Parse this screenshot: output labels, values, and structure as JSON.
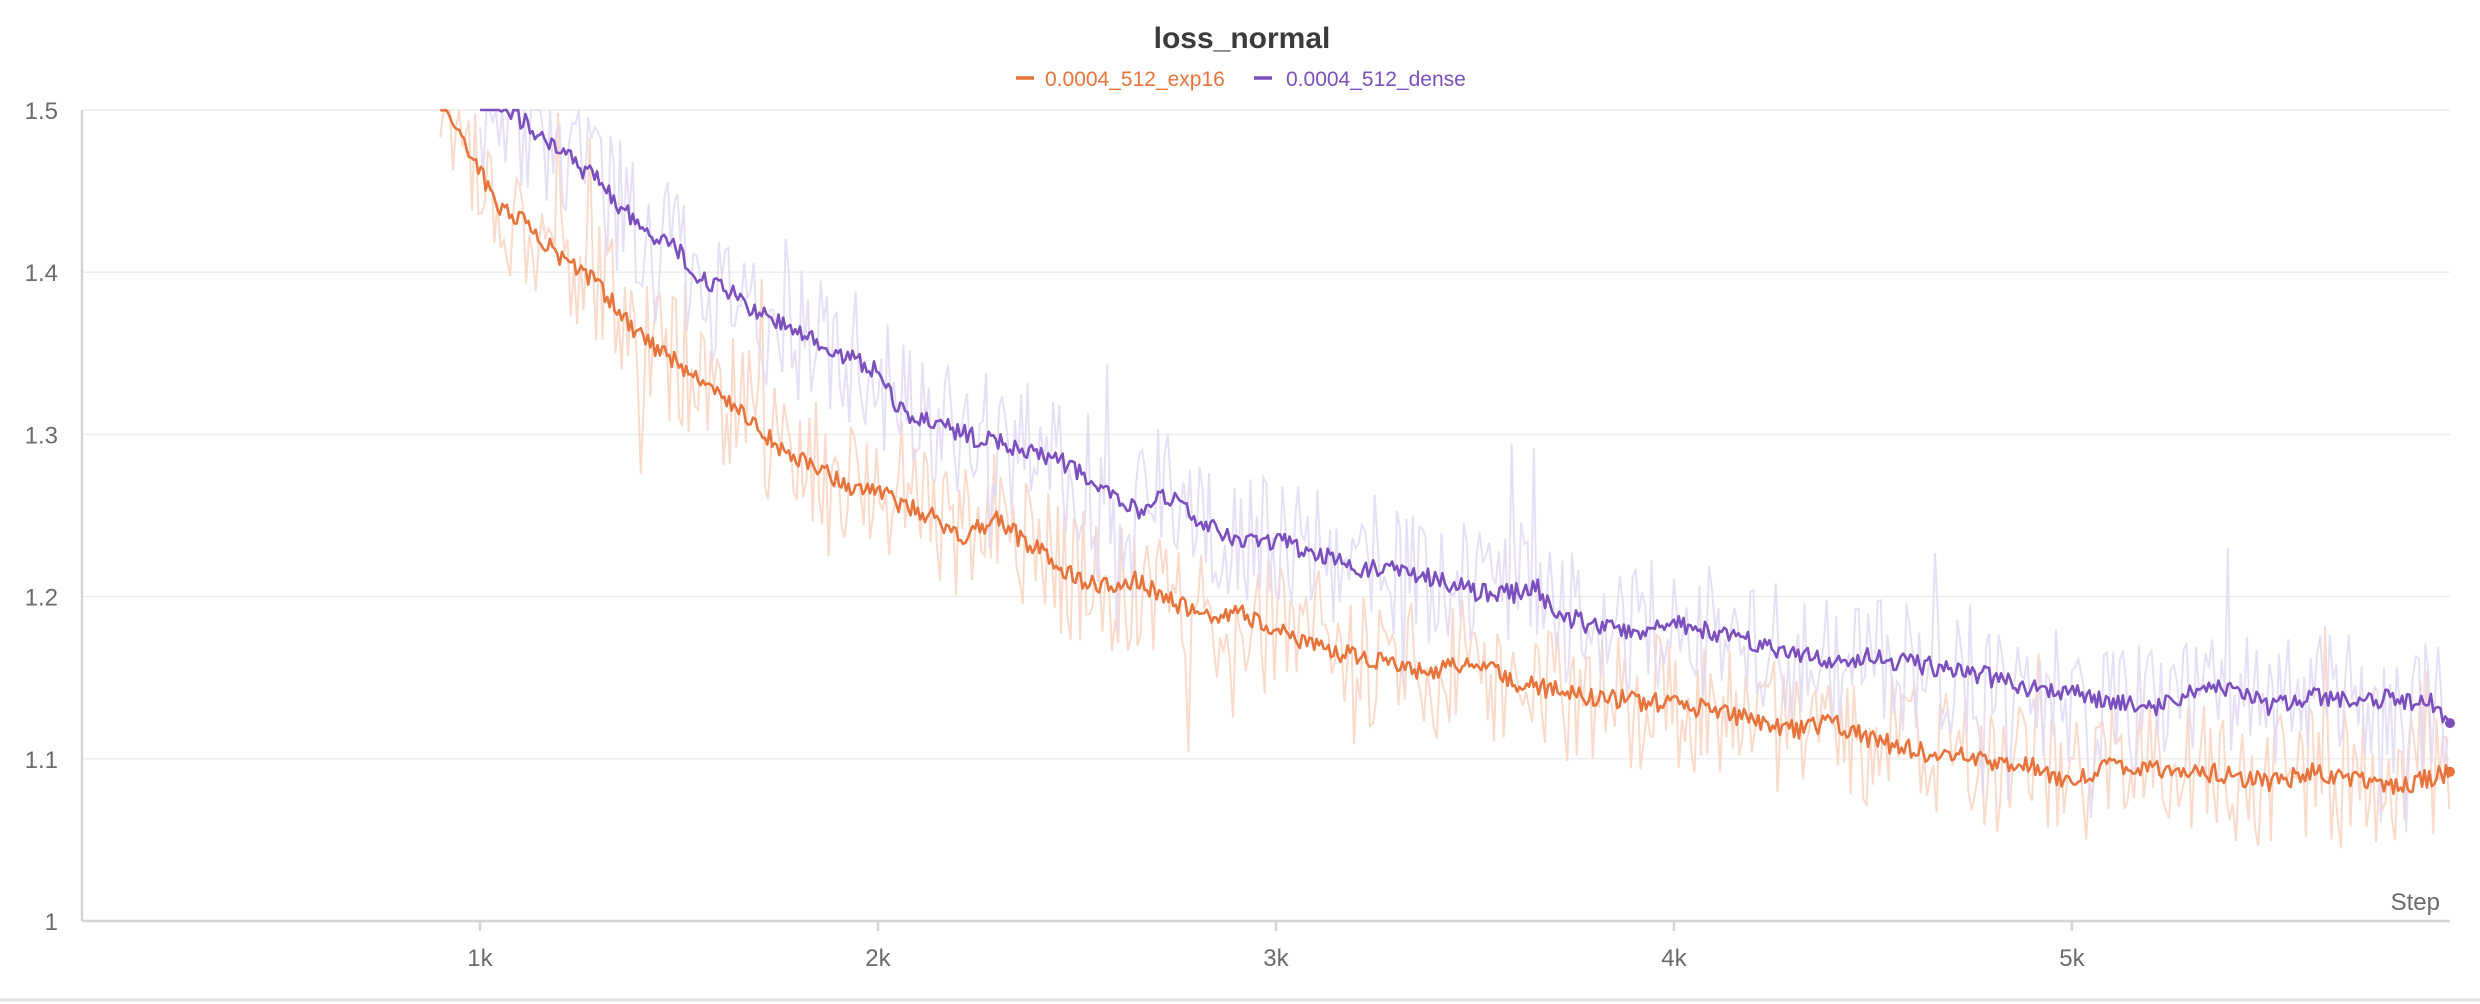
{
  "chart_data": {
    "type": "line",
    "title": "loss_normal",
    "xlabel": "Step",
    "ylabel": "",
    "xlim": [
      0,
      5950
    ],
    "ylim": [
      1.0,
      1.5
    ],
    "x_ticks": [
      {
        "value": 1000,
        "label": "1k"
      },
      {
        "value": 2000,
        "label": "2k"
      },
      {
        "value": 3000,
        "label": "3k"
      },
      {
        "value": 4000,
        "label": "4k"
      },
      {
        "value": 5000,
        "label": "5k"
      }
    ],
    "y_ticks": [
      {
        "value": 1.0,
        "label": "1"
      },
      {
        "value": 1.1,
        "label": "1.1"
      },
      {
        "value": 1.2,
        "label": "1.2"
      },
      {
        "value": 1.3,
        "label": "1.3"
      },
      {
        "value": 1.4,
        "label": "1.4"
      },
      {
        "value": 1.5,
        "label": "1.5"
      }
    ],
    "grid": true,
    "legend_position": "top-center",
    "series": [
      {
        "name": "0.0004_512_exp16",
        "color": "#e8743b",
        "raw_color": "#f9d4c2",
        "x": [
          900,
          950,
          1000,
          1050,
          1100,
          1150,
          1200,
          1250,
          1300,
          1350,
          1400,
          1450,
          1500,
          1550,
          1600,
          1650,
          1700,
          1750,
          1800,
          1850,
          1900,
          1950,
          2000,
          2050,
          2100,
          2150,
          2200,
          2250,
          2300,
          2350,
          2400,
          2450,
          2500,
          2550,
          2600,
          2650,
          2700,
          2750,
          2800,
          2850,
          2900,
          2950,
          3000,
          3100,
          3200,
          3300,
          3400,
          3500,
          3600,
          3700,
          3800,
          3900,
          4000,
          4100,
          4200,
          4300,
          4400,
          4500,
          4600,
          4700,
          4800,
          4900,
          5000,
          5100,
          5200,
          5300,
          5400,
          5500,
          5600,
          5700,
          5800,
          5900,
          5950
        ],
        "values": [
          1.505,
          1.485,
          1.462,
          1.44,
          1.433,
          1.42,
          1.41,
          1.402,
          1.392,
          1.375,
          1.362,
          1.352,
          1.345,
          1.332,
          1.325,
          1.318,
          1.305,
          1.292,
          1.285,
          1.278,
          1.272,
          1.266,
          1.268,
          1.258,
          1.252,
          1.248,
          1.236,
          1.243,
          1.248,
          1.237,
          1.23,
          1.22,
          1.212,
          1.208,
          1.205,
          1.21,
          1.202,
          1.196,
          1.19,
          1.188,
          1.191,
          1.184,
          1.178,
          1.17,
          1.163,
          1.158,
          1.153,
          1.16,
          1.147,
          1.142,
          1.138,
          1.136,
          1.133,
          1.13,
          1.124,
          1.118,
          1.122,
          1.112,
          1.105,
          1.102,
          1.097,
          1.095,
          1.085,
          1.097,
          1.095,
          1.093,
          1.09,
          1.085,
          1.092,
          1.088,
          1.082,
          1.088,
          1.092
        ]
      },
      {
        "name": "0.0004_512_dense",
        "color": "#7b4fbe",
        "raw_color": "#e2d9f5",
        "x": [
          1000,
          1050,
          1100,
          1150,
          1200,
          1250,
          1300,
          1350,
          1400,
          1450,
          1500,
          1550,
          1600,
          1650,
          1700,
          1750,
          1800,
          1850,
          1900,
          1950,
          2000,
          2050,
          2100,
          2150,
          2200,
          2250,
          2300,
          2350,
          2400,
          2450,
          2500,
          2550,
          2600,
          2650,
          2700,
          2750,
          2800,
          2850,
          2900,
          2950,
          3000,
          3100,
          3200,
          3300,
          3400,
          3500,
          3600,
          3650,
          3700,
          3800,
          3900,
          4000,
          4100,
          4200,
          4300,
          4400,
          4500,
          4600,
          4700,
          4800,
          4900,
          5000,
          5100,
          5200,
          5300,
          5400,
          5500,
          5600,
          5700,
          5800,
          5900,
          5950
        ],
        "values": [
          1.508,
          1.503,
          1.495,
          1.485,
          1.475,
          1.465,
          1.458,
          1.44,
          1.43,
          1.42,
          1.413,
          1.397,
          1.39,
          1.385,
          1.375,
          1.368,
          1.362,
          1.356,
          1.35,
          1.345,
          1.34,
          1.315,
          1.31,
          1.305,
          1.302,
          1.297,
          1.296,
          1.292,
          1.288,
          1.284,
          1.278,
          1.266,
          1.26,
          1.253,
          1.262,
          1.258,
          1.247,
          1.24,
          1.236,
          1.234,
          1.235,
          1.226,
          1.218,
          1.218,
          1.21,
          1.203,
          1.202,
          1.208,
          1.19,
          1.182,
          1.178,
          1.183,
          1.178,
          1.172,
          1.165,
          1.16,
          1.163,
          1.158,
          1.156,
          1.15,
          1.143,
          1.14,
          1.135,
          1.132,
          1.14,
          1.145,
          1.132,
          1.138,
          1.135,
          1.137,
          1.135,
          1.122
        ]
      }
    ]
  }
}
